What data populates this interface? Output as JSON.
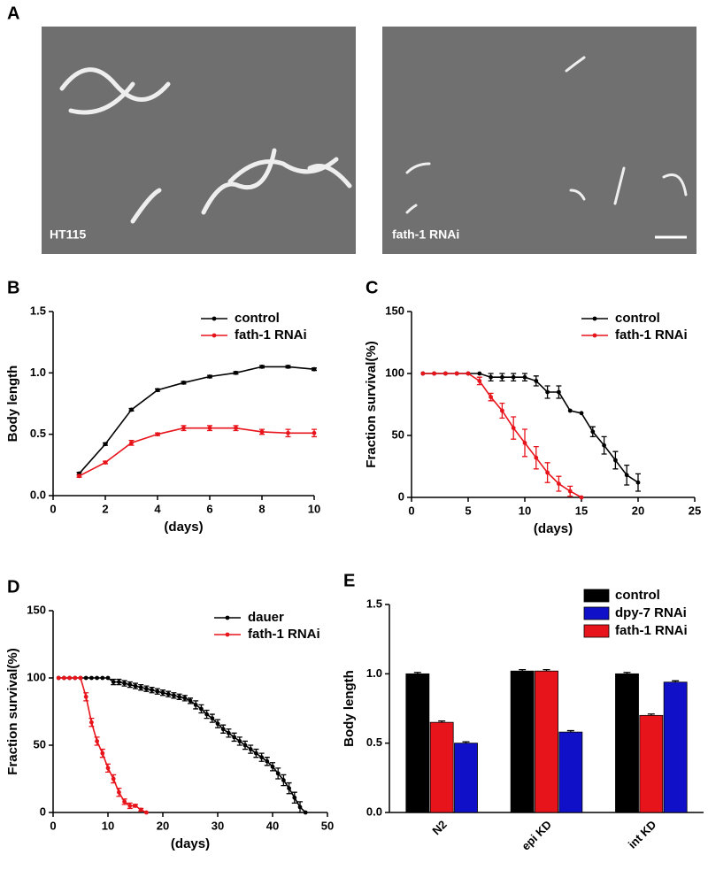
{
  "panel_a": {
    "label": "A",
    "images": [
      {
        "caption": "HT115"
      },
      {
        "caption": "fath-1 RNAi"
      }
    ]
  },
  "chart_data": [
    {
      "type": "line",
      "panel_label": "B",
      "ylabel": "Body length",
      "xlabel": "(days)",
      "xlim": [
        0,
        10
      ],
      "xticks": [
        0,
        2,
        4,
        6,
        8,
        10
      ],
      "ylim": [
        0,
        1.5
      ],
      "yticks": [
        {
          "value": 0,
          "label": "0.0"
        },
        {
          "value": 0.5,
          "label": "0.5"
        },
        {
          "value": 1,
          "label": "1.0"
        },
        {
          "value": 1.5,
          "label": "1.5"
        }
      ],
      "legend": "upper right",
      "series": [
        {
          "name": "control",
          "color": "#000000",
          "x": [
            1,
            2,
            3,
            4,
            5,
            6,
            7,
            8,
            9,
            10
          ],
          "values": [
            0.18,
            0.42,
            0.7,
            0.86,
            0.92,
            0.97,
            1.0,
            1.05,
            1.05,
            1.03
          ],
          "errors": [
            0.01,
            0.01,
            0.01,
            0.01,
            0.01,
            0.01,
            0.01,
            0.01,
            0.01,
            0.01
          ]
        },
        {
          "name": "fath-1 RNAi",
          "color": "#e8141b",
          "x": [
            1,
            2,
            3,
            4,
            5,
            6,
            7,
            8,
            9,
            10
          ],
          "values": [
            0.16,
            0.27,
            0.43,
            0.5,
            0.55,
            0.55,
            0.55,
            0.52,
            0.51,
            0.51
          ],
          "errors": [
            0.01,
            0.01,
            0.02,
            0.01,
            0.02,
            0.02,
            0.02,
            0.02,
            0.03,
            0.03
          ]
        }
      ]
    },
    {
      "type": "line",
      "panel_label": "C",
      "ylabel": "Fraction survival(%)",
      "xlabel": "(days)",
      "xlim": [
        0,
        25
      ],
      "xticks": [
        0,
        5,
        10,
        15,
        20,
        25
      ],
      "ylim": [
        0,
        150
      ],
      "yticks": [
        0,
        50,
        100,
        150
      ],
      "legend": "upper right",
      "series": [
        {
          "name": "control",
          "color": "#000000",
          "x": [
            1,
            2,
            3,
            4,
            5,
            6,
            7,
            8,
            9,
            10,
            11,
            12,
            13,
            14,
            15,
            16,
            17,
            18,
            19,
            20
          ],
          "values": [
            100,
            100,
            100,
            100,
            100,
            100,
            97,
            97,
            97,
            97,
            94,
            85,
            85,
            70,
            68,
            53,
            42,
            30,
            18,
            12
          ],
          "errors": [
            0,
            0,
            0,
            0,
            0,
            0,
            3,
            3,
            3,
            3,
            4,
            5,
            5,
            0,
            0,
            4,
            7,
            7,
            8,
            7
          ]
        },
        {
          "name": "fath-1 RNAi",
          "color": "#e8141b",
          "x": [
            1,
            2,
            3,
            4,
            5,
            6,
            7,
            8,
            9,
            10,
            11,
            12,
            13,
            14,
            15
          ],
          "values": [
            100,
            100,
            100,
            100,
            100,
            94,
            81,
            70,
            56,
            44,
            32,
            20,
            11,
            5,
            0
          ],
          "errors": [
            0,
            0,
            0,
            0,
            0,
            3,
            3,
            6,
            9,
            11,
            9,
            8,
            6,
            4,
            0
          ]
        }
      ]
    },
    {
      "type": "line",
      "panel_label": "D",
      "ylabel": "Fraction survival(%)",
      "xlabel": "(days)",
      "xlim": [
        0,
        50
      ],
      "xticks": [
        0,
        10,
        20,
        30,
        40,
        50
      ],
      "ylim": [
        0,
        150
      ],
      "yticks": [
        0,
        50,
        100,
        150
      ],
      "legend": "upper right",
      "series": [
        {
          "name": "dauer",
          "color": "#000000",
          "x": [
            1,
            2,
            3,
            4,
            5,
            6,
            7,
            8,
            9,
            10,
            11,
            12,
            13,
            14,
            15,
            16,
            17,
            18,
            19,
            20,
            21,
            22,
            23,
            24,
            25,
            26,
            27,
            28,
            29,
            30,
            31,
            32,
            33,
            34,
            35,
            36,
            37,
            38,
            39,
            40,
            41,
            42,
            43,
            44,
            45,
            46
          ],
          "values": [
            100,
            100,
            100,
            100,
            100,
            100,
            100,
            100,
            100,
            100,
            97,
            97,
            96,
            95,
            94,
            93,
            92,
            91,
            90,
            89,
            88,
            87,
            86,
            85,
            83,
            80,
            77,
            73,
            70,
            66,
            62,
            59,
            56,
            53,
            50,
            47,
            44,
            41,
            38,
            34,
            29,
            24,
            18,
            11,
            4,
            0
          ],
          "errors": [
            0,
            0,
            0,
            0,
            0,
            0,
            0,
            0,
            0,
            0,
            2,
            2,
            2,
            2,
            2,
            2,
            2,
            2,
            2,
            2,
            2,
            2,
            2,
            2,
            2,
            3,
            3,
            3,
            3,
            3,
            3,
            3,
            3,
            3,
            3,
            3,
            3,
            3,
            3,
            3,
            4,
            4,
            4,
            4,
            4,
            0
          ]
        },
        {
          "name": "fath-1 RNAi",
          "color": "#e8141b",
          "x": [
            1,
            2,
            3,
            4,
            5,
            6,
            7,
            8,
            9,
            10,
            11,
            12,
            13,
            14,
            15,
            16,
            17
          ],
          "values": [
            100,
            100,
            100,
            100,
            100,
            86,
            67,
            53,
            44,
            33,
            25,
            15,
            8,
            5,
            5,
            2,
            0
          ],
          "errors": [
            0,
            0,
            0,
            0,
            0,
            3,
            3,
            3,
            3,
            3,
            3,
            3,
            2,
            2,
            1,
            1,
            0
          ]
        }
      ]
    },
    {
      "type": "bar",
      "panel_label": "E",
      "ylabel": "Body length",
      "categories": [
        "N2",
        "epi KD",
        "int KD"
      ],
      "ylim": [
        0,
        1.5
      ],
      "yticks": [
        {
          "value": 0,
          "label": "0.0"
        },
        {
          "value": 0.5,
          "label": "0.5"
        },
        {
          "value": 1,
          "label": "1.0"
        },
        {
          "value": 1.5,
          "label": "1.5"
        }
      ],
      "legend": "upper right",
      "series": [
        {
          "name": "control",
          "color": "#000000",
          "values": [
            1.0,
            1.02,
            1.0
          ],
          "errors": [
            0.01,
            0.01,
            0.01
          ]
        },
        {
          "name": "dpy-7 RNAi",
          "color": "#1010c8",
          "values": [
            0.5,
            0.58,
            0.94
          ],
          "errors": [
            0.01,
            0.01,
            0.01
          ]
        },
        {
          "name": "fath-1 RNAi",
          "color": "#e8141b",
          "values": [
            0.65,
            1.02,
            0.7
          ],
          "errors": [
            0.01,
            0.01,
            0.01
          ]
        }
      ]
    }
  ]
}
